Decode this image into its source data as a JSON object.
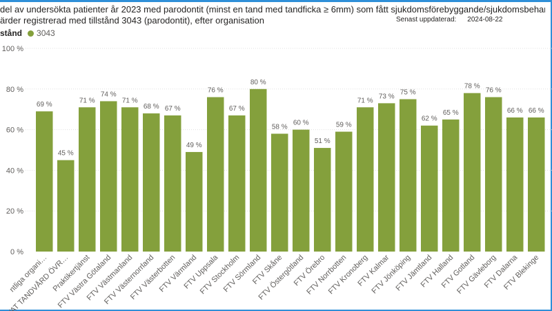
{
  "title_line1": "del av undersökta patienter år 2023 med parodontit (minst en tand med tandficka ≥ 6mm) som fått sjukdomsförebyggande/sjukdomsbehandlande",
  "title_line2": "ärder registrerad med tillstånd 3043 (parodontit), efter organisation",
  "updated_label": "Senast uppdaterad:",
  "updated_date": "2024-08-22",
  "legend_title": "stånd",
  "colors": {
    "bar": "#84a03c",
    "grid": "#e1e1e1",
    "frame": "#2f8fd8"
  },
  "chart_data": {
    "type": "bar",
    "categories": [
      "ntliga organi…",
      "VAT TANDVÅRD ÖVR…",
      "Praktikertjänst",
      "FTV Västra Götaland",
      "FTV Västmanland",
      "FTV Västernorrland",
      "FTV Västerbotten",
      "FTV Värmland",
      "FTV Uppsala",
      "FTV Stockholm",
      "FTV Sörmland",
      "FTV Skåne",
      "FTV Östergötland",
      "FTV Örebro",
      "FTV Norrbotten",
      "FTV Kronoberg",
      "FTV Kalmar",
      "FTV Jönköping",
      "FTV Jämtland",
      "FTV Halland",
      "FTV Gotland",
      "FTV Gävleborg",
      "FTV Dalarna",
      "FTV Blekinge"
    ],
    "series": [
      {
        "name": "3043",
        "values": [
          69,
          45,
          71,
          74,
          71,
          68,
          67,
          49,
          76,
          67,
          80,
          58,
          60,
          51,
          59,
          71,
          73,
          75,
          62,
          65,
          78,
          76,
          66,
          66
        ],
        "labels": [
          "69 %",
          "45 %",
          "71 %",
          "74 %",
          "71 %",
          "68 %",
          "67 %",
          "49 %",
          "76 %",
          "67 %",
          "80 %",
          "58 %",
          "60 %",
          "51 %",
          "59 %",
          "71 %",
          "73 %",
          "75 %",
          "62 %",
          "65 %",
          "78 %",
          "76 %",
          "66 %",
          "66 %"
        ]
      }
    ],
    "y_ticks": [
      "0 %",
      "20 %",
      "40 %",
      "60 %",
      "80 %",
      "100 %"
    ],
    "ylim": [
      0,
      100
    ],
    "grid": true,
    "legend_position": "top-left"
  }
}
